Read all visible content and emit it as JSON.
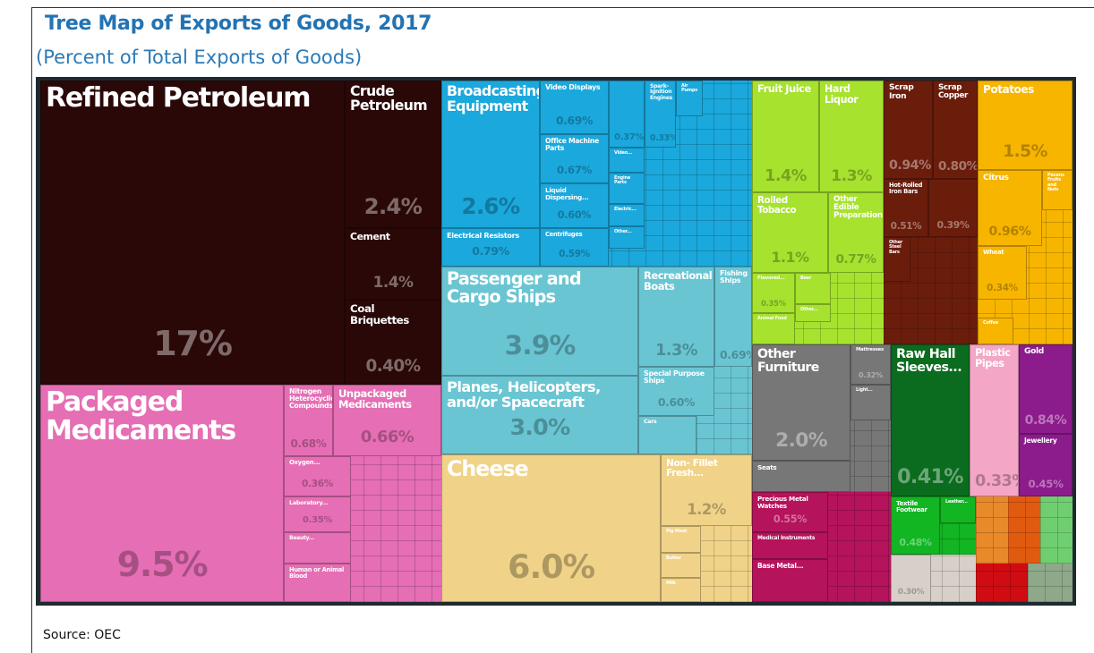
{
  "chart_data": {
    "type": "treemap",
    "title": "Tree Map of Exports of Goods, 2017",
    "subtitle": "(Percent of Total Exports of Goods)",
    "source": "Source: OEC",
    "categories": [
      "Refined Petroleum",
      "Crude Petroleum",
      "Cement",
      "Coal Briquettes",
      "Packaged Medicaments",
      "Nitrogen Heterocyclic Compounds",
      "Unpackaged Medicaments",
      "Oxygen...",
      "Laboratory...",
      "Beauty...",
      "Human or Animal Blood",
      "Broadcasting Equipment",
      "Video Displays",
      "Office Machine Parts",
      "Liquid Dispersing...",
      "Electrical Resistors",
      "Centrifuges",
      null,
      "Spark-Ignition Engines",
      "Air Pumps",
      "Video...",
      "Engine Parts",
      "Electric...",
      "Other...",
      "Passenger and Cargo Ships",
      "Recreational Boats",
      "Fishing Ships",
      "Planes, Helicopters, and/or Spacecraft",
      "Special Purpose Ships",
      "Cars",
      "Cheese",
      "Non- Fillet Fresh...",
      "Pig Meat",
      "Butter",
      "Milk",
      "Fruit Juice",
      "Hard Liquor",
      "Rolled Tobacco",
      "Other Edible Preparations",
      "Flavored...",
      "Beer",
      "Other...",
      "Animal Food",
      "Scrap Iron",
      "Scrap Copper",
      "Hot-Rolled Iron Bars",
      null,
      "Other Steel Bars",
      "Potatoes",
      "Citrus",
      "Pecans Fruits and Nuts",
      "Wheat",
      "Coffee",
      "Other Furniture",
      "Mattresses",
      "Light...",
      "Seats",
      "Precious Metal Watches",
      "Medical Instruments",
      "Base Metal...",
      "Raw Hall Sleeves...",
      "Plastic Pipes",
      "Gold",
      "Jewellery",
      "Textile Footwear",
      "Leather...",
      null
    ],
    "values": [
      17,
      2.4,
      1.4,
      0.4,
      9.5,
      0.68,
      0.66,
      0.36,
      0.35,
      null,
      null,
      2.6,
      0.69,
      0.67,
      0.6,
      0.79,
      0.59,
      0.37,
      0.33,
      null,
      null,
      null,
      null,
      null,
      3.9,
      1.3,
      0.69,
      3.0,
      0.6,
      null,
      6.0,
      1.2,
      null,
      null,
      null,
      1.4,
      1.3,
      1.1,
      0.77,
      0.35,
      null,
      null,
      null,
      0.94,
      0.8,
      0.51,
      0.39,
      null,
      1.5,
      0.96,
      null,
      0.34,
      null,
      2.0,
      0.32,
      null,
      null,
      0.55,
      null,
      null,
      0.41,
      0.33,
      0.84,
      0.45,
      0.48,
      null,
      0.3
    ],
    "value_labels": [
      "17%",
      "2.4%",
      "1.4%",
      "0.40%",
      "9.5%",
      "0.68%",
      "0.66%",
      "0.36%",
      "0.35%",
      null,
      null,
      "2.6%",
      "0.69%",
      "0.67%",
      "0.60%",
      "0.79%",
      "0.59%",
      "0.37%",
      "0.33%",
      null,
      null,
      null,
      null,
      null,
      "3.9%",
      "1.3%",
      "0.69%",
      "3.0%",
      "0.60%",
      null,
      "6.0%",
      "1.2%",
      null,
      null,
      null,
      "1.4%",
      "1.3%",
      "1.1%",
      "0.77%",
      "0.35%",
      null,
      null,
      null,
      "0.94%",
      "0.80%",
      "0.51%",
      "0.39%",
      null,
      "1.5%",
      "0.96%",
      null,
      "0.34%",
      null,
      "2.0%",
      "0.32%",
      null,
      null,
      "0.55%",
      null,
      null,
      "0.41%",
      "0.33%",
      "0.84%",
      "0.45%",
      "0.48%",
      null,
      "0.30%"
    ],
    "colors": [
      "#2a0808",
      "#2a0808",
      "#2a0808",
      "#2a0808",
      "#e56eb4",
      "#e56eb4",
      "#e56eb4",
      "#e56eb4",
      "#e56eb4",
      "#e56eb4",
      "#e56eb4",
      "#1ba8dc",
      "#1ba8dc",
      "#1ba8dc",
      "#1ba8dc",
      "#1ba8dc",
      "#1ba8dc",
      "#1ba8dc",
      "#1ba8dc",
      "#1ba8dc",
      "#1ba8dc",
      "#1ba8dc",
      "#1ba8dc",
      "#1ba8dc",
      "#6ac5d3",
      "#6ac5d3",
      "#6ac5d3",
      "#6ac5d3",
      "#6ac5d3",
      "#6ac5d3",
      "#f0d388",
      "#f0d388",
      "#f0d388",
      "#f0d388",
      "#f0d388",
      "#a6e22e",
      "#a6e22e",
      "#a6e22e",
      "#a6e22e",
      "#a6e22e",
      "#a6e22e",
      "#a6e22e",
      "#a6e22e",
      "#6b1d0c",
      "#6b1d0c",
      "#6b1d0c",
      "#6b1d0c",
      "#6b1d0c",
      "#f7b500",
      "#f7b500",
      "#f7b500",
      "#f7b500",
      "#f7b500",
      "#777777",
      "#777777",
      "#777777",
      "#777777",
      "#b5135c",
      "#b5135c",
      "#b5135c",
      "#0b6b1e",
      "#f4a6c6",
      "#8c1b8c",
      "#8c1b8c",
      "#12b522",
      "#12b522",
      "#d8d0c8"
    ]
  }
}
